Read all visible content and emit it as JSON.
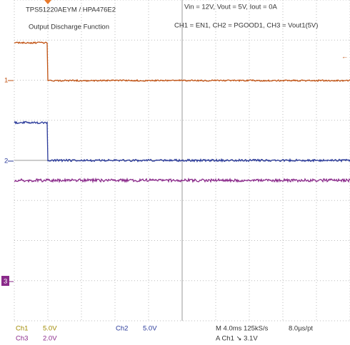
{
  "header": {
    "title": "TPS51220AEYM / HPA476E2",
    "subtitle": "Output Discharge Function",
    "conditions": "Vin = 12V, Vout = 5V, Iout = 0A",
    "channels": "CH1 = EN1, CH2 = PGOOD1, CH3 = Vout1(5V)"
  },
  "markers": [
    "1",
    "2",
    "3"
  ],
  "footer": {
    "row1": [
      "Ch1",
      "5.0V",
      "Ch2",
      "5.0V",
      "M 4.0ms 125kS/s",
      "8.0µs/pt"
    ],
    "row2": [
      "Ch3",
      "2.0V",
      "A  Ch1  ↘  3.1V"
    ]
  }
}
